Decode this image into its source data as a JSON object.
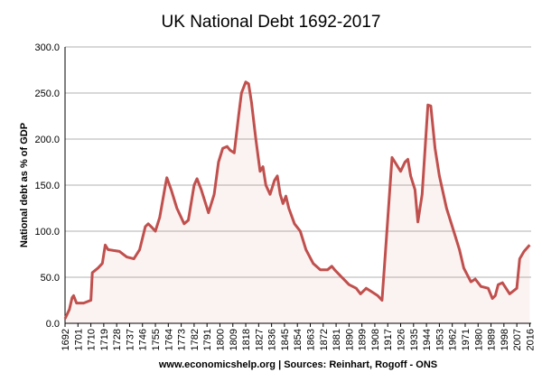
{
  "chart_data": {
    "type": "line",
    "title": "UK National Debt 1692-2017",
    "y_label": "National debt as % of GDP",
    "source": "www.economicshelp.org | Sources: Reinhart, Rogoff - ONS",
    "x": [
      1692,
      1695,
      1697,
      1698,
      1700,
      1705,
      1710,
      1711,
      1715,
      1718,
      1720,
      1722,
      1730,
      1735,
      1740,
      1744,
      1748,
      1750,
      1752,
      1755,
      1758,
      1762,
      1763,
      1766,
      1770,
      1775,
      1778,
      1782,
      1784,
      1787,
      1792,
      1796,
      1799,
      1802,
      1805,
      1807,
      1810,
      1813,
      1815,
      1818,
      1820,
      1822,
      1825,
      1828,
      1830,
      1832,
      1835,
      1838,
      1840,
      1842,
      1844,
      1846,
      1848,
      1852,
      1856,
      1860,
      1865,
      1870,
      1875,
      1878,
      1880,
      1885,
      1890,
      1895,
      1898,
      1902,
      1905,
      1910,
      1913,
      1916,
      1918,
      1920,
      1922,
      1926,
      1929,
      1931,
      1933,
      1936,
      1938,
      1941,
      1945,
      1947,
      1950,
      1953,
      1958,
      1962,
      1967,
      1970,
      1975,
      1978,
      1982,
      1987,
      1990,
      1992,
      1994,
      1997,
      2002,
      2007,
      2009,
      2012,
      2016
    ],
    "series": [
      {
        "name": "National debt as % of GDP",
        "color": "#c0504d",
        "values": [
          5,
          15,
          28,
          30,
          22,
          22,
          25,
          55,
          60,
          65,
          85,
          80,
          78,
          72,
          70,
          80,
          105,
          108,
          105,
          100,
          115,
          150,
          158,
          145,
          125,
          108,
          112,
          150,
          157,
          145,
          120,
          140,
          175,
          190,
          192,
          188,
          185,
          225,
          250,
          262,
          260,
          240,
          200,
          165,
          170,
          150,
          140,
          155,
          160,
          140,
          130,
          138,
          125,
          108,
          100,
          80,
          65,
          58,
          58,
          62,
          58,
          50,
          42,
          38,
          32,
          38,
          35,
          30,
          25,
          90,
          135,
          180,
          175,
          165,
          175,
          178,
          160,
          145,
          110,
          140,
          237,
          236,
          190,
          160,
          125,
          105,
          80,
          60,
          45,
          48,
          40,
          38,
          27,
          30,
          42,
          44,
          32,
          38,
          70,
          78,
          85
        ]
      }
    ],
    "xlim": [
      1692,
      2017
    ],
    "xticks": [
      1692,
      1701,
      1710,
      1719,
      1728,
      1737,
      1746,
      1755,
      1764,
      1773,
      1782,
      1791,
      1800,
      1809,
      1818,
      1827,
      1836,
      1845,
      1854,
      1863,
      1872,
      1881,
      1890,
      1899,
      1908,
      1917,
      1926,
      1935,
      1944,
      1953,
      1962,
      1971,
      1980,
      1989,
      1998,
      2007,
      2016
    ],
    "ylim": [
      0,
      300
    ],
    "yticks": [
      {
        "value": 0,
        "label": "0.0"
      },
      {
        "value": 50,
        "label": "50.0"
      },
      {
        "value": 100,
        "label": "100.0"
      },
      {
        "value": 150,
        "label": "150.0"
      },
      {
        "value": 200,
        "label": "200.0"
      },
      {
        "value": 250,
        "label": "250.0"
      },
      {
        "value": 300,
        "label": "300.0"
      }
    ],
    "grid": true
  }
}
